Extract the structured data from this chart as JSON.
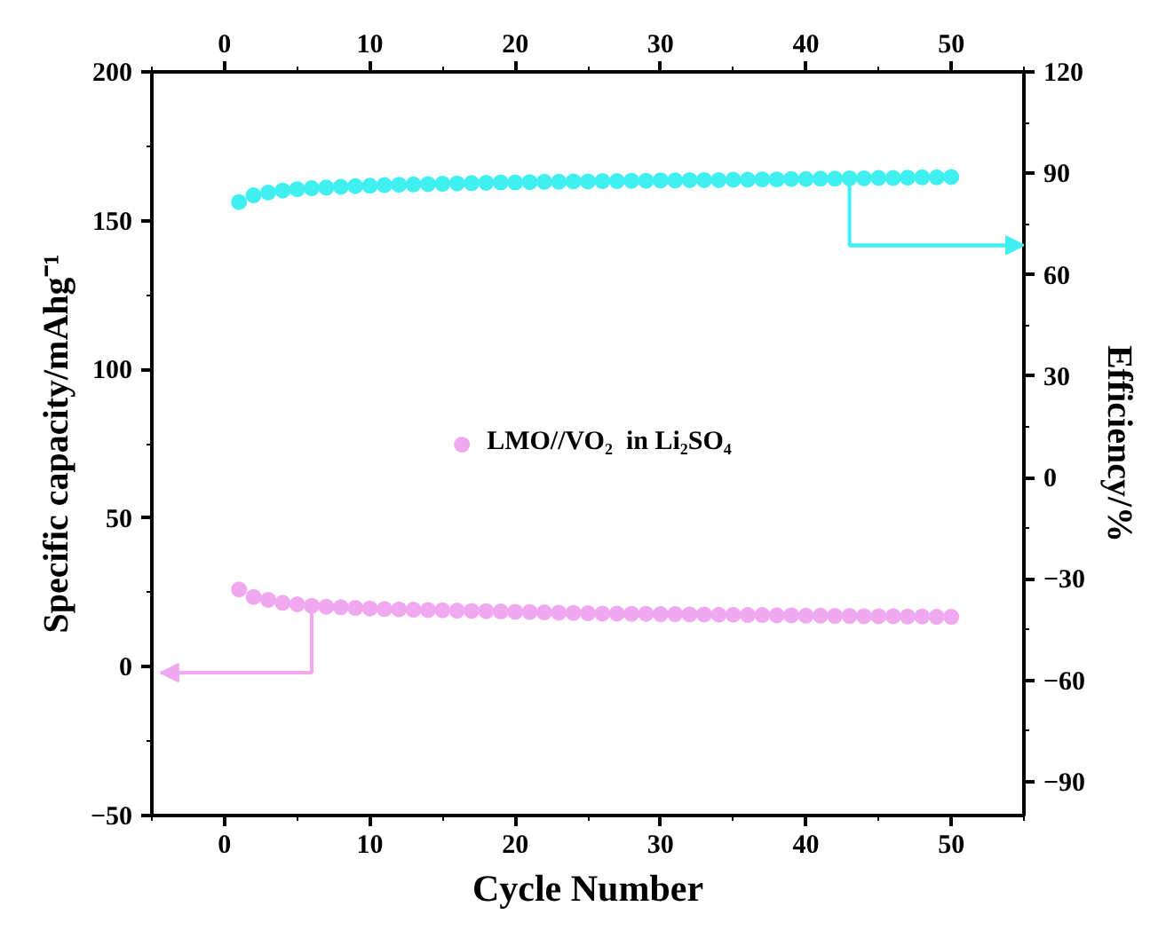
{
  "chart_data": {
    "type": "scatter",
    "xlabel": "Cycle Number",
    "ylabel": "Specific capacity/mAhg⁻¹",
    "y2label": "Efficiency/%",
    "x": [
      1,
      2,
      3,
      4,
      5,
      6,
      7,
      8,
      9,
      10,
      11,
      12,
      13,
      14,
      15,
      16,
      17,
      18,
      19,
      20,
      21,
      22,
      23,
      24,
      25,
      26,
      27,
      28,
      29,
      30,
      31,
      32,
      33,
      34,
      35,
      36,
      37,
      38,
      39,
      40,
      41,
      42,
      43,
      44,
      45,
      46,
      47,
      48,
      49,
      50
    ],
    "series": [
      {
        "name": "LMO//VO₂  in Li₂SO₄",
        "color": "#f0a8f0",
        "values": [
          26,
          23.5,
          22.5,
          21.5,
          21,
          20.5,
          20.2,
          20,
          19.8,
          19.6,
          19.4,
          19.3,
          19.2,
          19.1,
          19,
          18.9,
          18.8,
          18.7,
          18.6,
          18.5,
          18.4,
          18.3,
          18.2,
          18.1,
          18,
          17.9,
          17.9,
          17.8,
          17.8,
          17.7,
          17.7,
          17.6,
          17.6,
          17.5,
          17.5,
          17.4,
          17.4,
          17.3,
          17.3,
          17.2,
          17.2,
          17.1,
          17.1,
          17,
          17,
          17,
          16.9,
          16.9,
          16.8,
          16.8
        ]
      },
      {
        "color": "#40f0f0",
        "axis": "y2",
        "values": [
          81.5,
          83.5,
          84.3,
          84.9,
          85.3,
          85.6,
          85.8,
          86,
          86.2,
          86.3,
          86.5,
          86.6,
          86.7,
          86.8,
          86.9,
          87,
          87.1,
          87.2,
          87.3,
          87.3,
          87.4,
          87.5,
          87.5,
          87.6,
          87.6,
          87.7,
          87.7,
          87.8,
          87.8,
          87.9,
          87.9,
          88,
          88,
          88,
          88.1,
          88.1,
          88.2,
          88.2,
          88.3,
          88.3,
          88.4,
          88.4,
          88.5,
          88.5,
          88.6,
          88.6,
          88.7,
          88.8,
          88.8,
          88.9
        ]
      }
    ],
    "xlim": [
      -5,
      55
    ],
    "xticks": [
      0,
      10,
      20,
      30,
      40,
      50
    ],
    "x2lim": [
      -5,
      55
    ],
    "x2ticks": [
      0,
      10,
      20,
      30,
      40,
      50
    ],
    "ylim": [
      -50,
      200
    ],
    "yticks": [
      -50,
      0,
      50,
      100,
      150,
      200
    ],
    "y2lim": [
      -100,
      120
    ],
    "y2ticks": [
      -90,
      -60,
      -30,
      0,
      30,
      60,
      90,
      120
    ],
    "marker": "circle",
    "legend": "center",
    "grid": false
  }
}
